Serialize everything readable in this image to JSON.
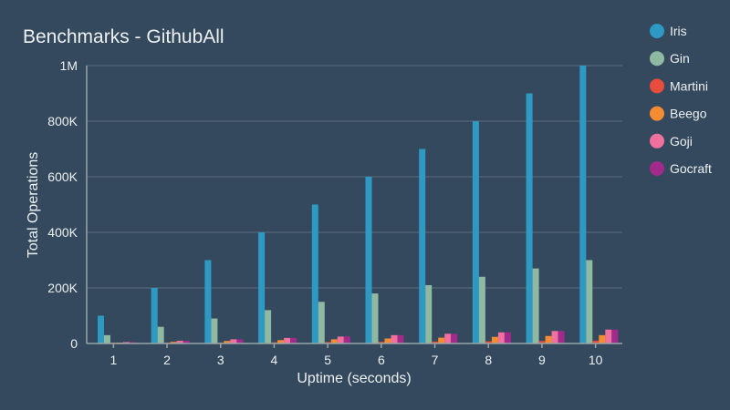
{
  "chart_data": {
    "type": "bar",
    "title": "Benchmarks - GithubAll",
    "xlabel": "Uptime (seconds)",
    "ylabel": "Total Operations",
    "ylim": [
      0,
      1000000
    ],
    "y_ticks": [
      {
        "value": 0,
        "label": "0"
      },
      {
        "value": 200000,
        "label": "200K"
      },
      {
        "value": 400000,
        "label": "400K"
      },
      {
        "value": 600000,
        "label": "600K"
      },
      {
        "value": 800000,
        "label": "800K"
      },
      {
        "value": 1000000,
        "label": "1M"
      }
    ],
    "grid": true,
    "legend_position": "right",
    "categories": [
      "1",
      "2",
      "3",
      "4",
      "5",
      "6",
      "7",
      "8",
      "9",
      "10"
    ],
    "series": [
      {
        "name": "Iris",
        "color": "#2e9ac4",
        "values": [
          100000,
          200000,
          300000,
          400000,
          500000,
          600000,
          700000,
          800000,
          900000,
          1000000
        ]
      },
      {
        "name": "Gin",
        "color": "#8fb9a0",
        "values": [
          30000,
          60000,
          90000,
          120000,
          150000,
          180000,
          210000,
          240000,
          270000,
          300000
        ]
      },
      {
        "name": "Martini",
        "color": "#e74c3c",
        "values": [
          1000,
          2000,
          3000,
          4000,
          5000,
          6000,
          7000,
          8000,
          9000,
          10000
        ]
      },
      {
        "name": "Beego",
        "color": "#f68c32",
        "values": [
          3000,
          6000,
          9000,
          12000,
          15000,
          18000,
          21000,
          24000,
          27000,
          30000
        ]
      },
      {
        "name": "Goji",
        "color": "#f0709e",
        "values": [
          5000,
          10000,
          15000,
          20000,
          25000,
          30000,
          35000,
          40000,
          45000,
          50000
        ]
      },
      {
        "name": "Gocraft",
        "color": "#a12a8c",
        "values": [
          5000,
          10000,
          15000,
          20000,
          25000,
          30000,
          35000,
          40000,
          45000,
          50000
        ]
      }
    ]
  }
}
